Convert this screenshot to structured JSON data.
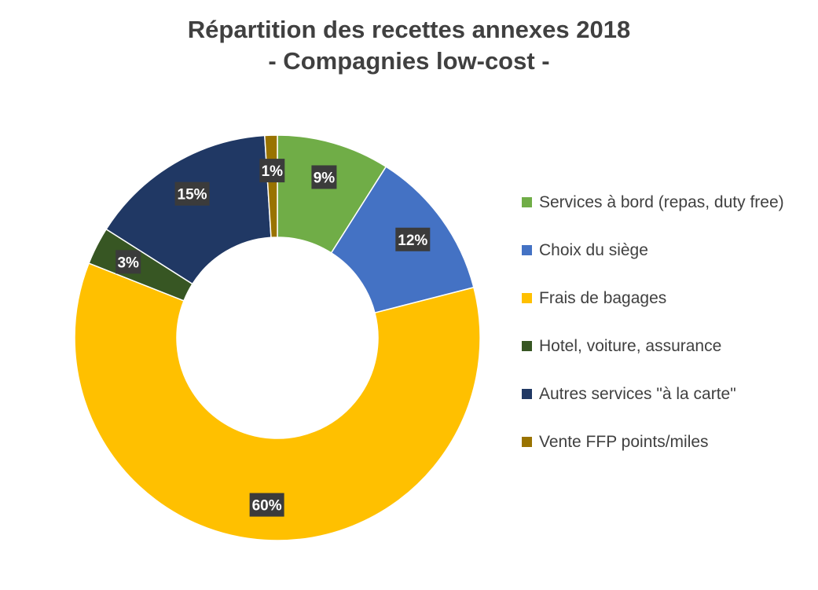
{
  "title_line1": "Répartition des recettes annexes 2018",
  "title_line2": "- Compagnies low-cost -",
  "chart_data": {
    "type": "pie",
    "style": "doughnut",
    "title": "Répartition des recettes annexes 2018 - Compagnies low-cost -",
    "legend_position": "right",
    "categories": [
      "Services à bord (repas, duty free)",
      "Choix du siège",
      "Frais de bagages",
      "Hotel, voiture, assurance",
      "Autres services \"à la carte\"",
      "Vente FFP points/miles"
    ],
    "values": [
      9,
      12,
      60,
      3,
      15,
      1
    ],
    "data_labels": [
      "9%",
      "12%",
      "60%",
      "3%",
      "15%",
      "1%"
    ],
    "colors": [
      "#70AD47",
      "#4472C4",
      "#FFC000",
      "#375623",
      "#203864",
      "#997300"
    ],
    "label_box_color": "#3b3b3b",
    "label_text_color": "#ffffff"
  }
}
